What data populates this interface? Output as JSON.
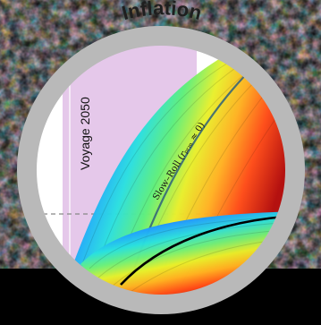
{
  "badge": {
    "title": "Inflation",
    "region_label": "Voyage 2050",
    "curve_label": "Slow–Roll (𝑟ₚᵣₘ ≈ 0)"
  },
  "colors": {
    "ring": "#b9b9b9",
    "background": "#000000",
    "region_fill": "#e2c4e6",
    "right_region_fill": "#d8ecd2",
    "cmb_blue": "#2a6fb3",
    "cmb_orange": "#c9772e"
  },
  "icons": {
    "background": "cmb-noise-texture",
    "band_upper": "rainbow-colormap-band",
    "band_lower": "rainbow-colormap-band"
  }
}
